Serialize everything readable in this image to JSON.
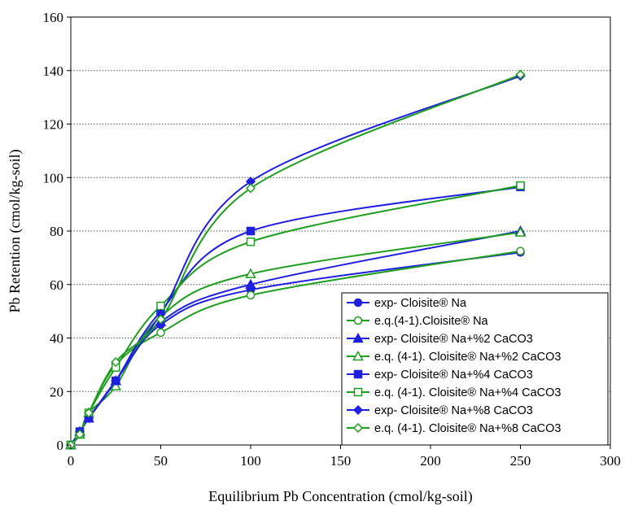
{
  "chart_data": {
    "type": "scatter",
    "title": "",
    "xlabel": "Equilibrium Pb Concentration (cmol/kg-soil)",
    "ylabel": "Pb Retention (cmol/kg-soil)",
    "xlim": [
      0,
      300
    ],
    "ylim": [
      0,
      160
    ],
    "xticks": [
      0,
      50,
      100,
      150,
      200,
      250,
      300
    ],
    "yticks": [
      0,
      20,
      40,
      60,
      80,
      100,
      120,
      140,
      160
    ],
    "grid": "horizontal-dotted",
    "legend_position": "bottom-right",
    "series": [
      {
        "name": "exp- Cloisite® Na",
        "color": "#1f1fe0",
        "marker": "circle",
        "filled": true,
        "points": [
          [
            0,
            0
          ],
          [
            5,
            5
          ],
          [
            10,
            10
          ],
          [
            25,
            24
          ],
          [
            50,
            45
          ],
          [
            100,
            58
          ],
          [
            250,
            72
          ]
        ]
      },
      {
        "name": "e.q.(4-1).Cloisite® Na",
        "color": "#1e9e1e",
        "marker": "circle",
        "filled": false,
        "points": [
          [
            0,
            0
          ],
          [
            5,
            4
          ],
          [
            10,
            12
          ],
          [
            25,
            30
          ],
          [
            50,
            42
          ],
          [
            100,
            56
          ],
          [
            250,
            72.5
          ]
        ]
      },
      {
        "name": "exp- Cloisite® Na+%2 CaCO3",
        "color": "#1f1fe0",
        "marker": "triangle",
        "filled": true,
        "points": [
          [
            0,
            0
          ],
          [
            5,
            5
          ],
          [
            10,
            10
          ],
          [
            25,
            24
          ],
          [
            50,
            46
          ],
          [
            100,
            60
          ],
          [
            250,
            80
          ]
        ]
      },
      {
        "name": "e.q. (4-1). Cloisite® Na+%2 CaCO3",
        "color": "#1e9e1e",
        "marker": "triangle",
        "filled": false,
        "points": [
          [
            0,
            0
          ],
          [
            5,
            4
          ],
          [
            10,
            12
          ],
          [
            25,
            22
          ],
          [
            50,
            48
          ],
          [
            100,
            64
          ],
          [
            250,
            79.5
          ]
        ]
      },
      {
        "name": "exp- Cloisite® Na+%4 CaCO3",
        "color": "#1f1fe0",
        "marker": "square",
        "filled": true,
        "points": [
          [
            0,
            0
          ],
          [
            5,
            5
          ],
          [
            10,
            10
          ],
          [
            25,
            24
          ],
          [
            50,
            50
          ],
          [
            100,
            80
          ],
          [
            250,
            96.5
          ]
        ]
      },
      {
        "name": "e.q. (4-1). Cloisite® Na+%4 CaCO3",
        "color": "#1e9e1e",
        "marker": "square",
        "filled": false,
        "points": [
          [
            0,
            0
          ],
          [
            5,
            4
          ],
          [
            10,
            12
          ],
          [
            25,
            29
          ],
          [
            50,
            52
          ],
          [
            100,
            76
          ],
          [
            250,
            97
          ]
        ]
      },
      {
        "name": "exp- Cloisite® Na+%8 CaCO3",
        "color": "#1f1fe0",
        "marker": "diamond",
        "filled": true,
        "points": [
          [
            0,
            0
          ],
          [
            5,
            5
          ],
          [
            10,
            10
          ],
          [
            25,
            24
          ],
          [
            50,
            49
          ],
          [
            100,
            98.5
          ],
          [
            250,
            138
          ]
        ]
      },
      {
        "name": "e.q. (4-1). Cloisite® Na+%8 CaCO3",
        "color": "#1e9e1e",
        "marker": "diamond",
        "filled": false,
        "points": [
          [
            0,
            0
          ],
          [
            5,
            4
          ],
          [
            10,
            12
          ],
          [
            25,
            31
          ],
          [
            50,
            47
          ],
          [
            100,
            96
          ],
          [
            250,
            138.5
          ]
        ]
      }
    ]
  }
}
